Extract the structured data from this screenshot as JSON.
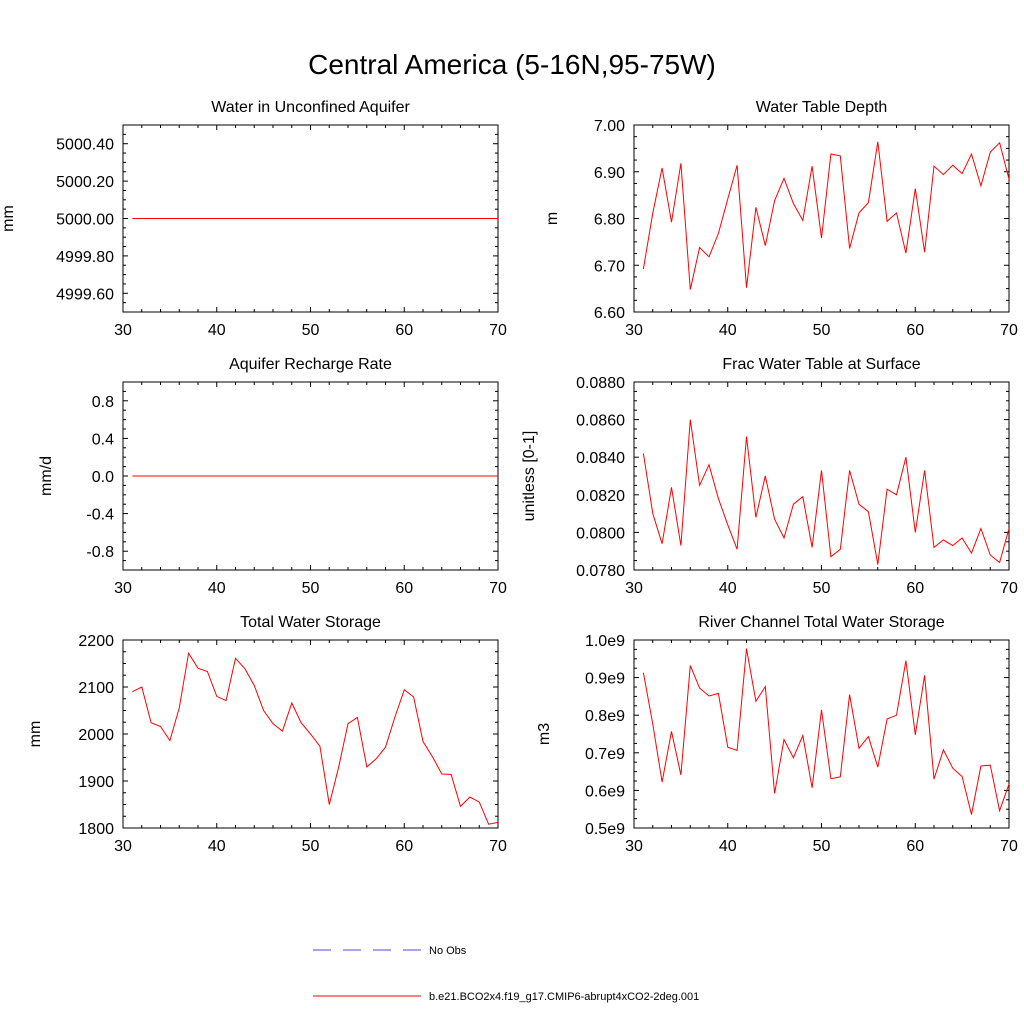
{
  "figure": {
    "title": "Central America (5-16N,95-75W)",
    "legend": [
      {
        "label": "No Obs",
        "color": "#4b4bcf",
        "style": "dashed"
      },
      {
        "label": "b.e21.BCO2x4.f19_g17.CMIP6-abrupt4xCO2-2deg.001",
        "color": "#ff0000",
        "style": "solid"
      }
    ]
  },
  "chart_data": [
    {
      "type": "line",
      "title": "Water in Unconfined Aquifer",
      "xlabel": "",
      "ylabel": "mm",
      "xlim": [
        30,
        70
      ],
      "ylim": [
        4999.5,
        5000.5
      ],
      "xticks": [
        30,
        40,
        50,
        60,
        70
      ],
      "xtick_labels": [
        "30",
        "40",
        "50",
        "60",
        "70"
      ],
      "yticks": [
        4999.6,
        4999.8,
        5000.0,
        5000.2,
        5000.4
      ],
      "ytick_labels": [
        "4999.60",
        "4999.80",
        "5000.00",
        "5000.20",
        "5000.40"
      ],
      "grid": false,
      "series": [
        {
          "name": "b.e21.BCO2x4.f19_g17.CMIP6-abrupt4xCO2-2deg.001",
          "color": "#ff0000",
          "x": [
            31,
            70
          ],
          "values": [
            5000.0,
            5000.0
          ]
        }
      ]
    },
    {
      "type": "line",
      "title": "Water Table Depth",
      "xlabel": "",
      "ylabel": "m",
      "xlim": [
        30,
        70
      ],
      "ylim": [
        6.6,
        7.0
      ],
      "xticks": [
        30,
        40,
        50,
        60,
        70
      ],
      "xtick_labels": [
        "30",
        "40",
        "50",
        "60",
        "70"
      ],
      "yticks": [
        6.6,
        6.7,
        6.8,
        6.9,
        7.0
      ],
      "ytick_labels": [
        "6.60",
        "6.70",
        "6.80",
        "6.90",
        "7.00"
      ],
      "grid": false,
      "series": [
        {
          "name": "b.e21.BCO2x4.f19_g17.CMIP6-abrupt4xCO2-2deg.001",
          "color": "#ff0000",
          "x": [
            31,
            32,
            33,
            34,
            35,
            36,
            37,
            38,
            39,
            40,
            41,
            42,
            43,
            44,
            45,
            46,
            47,
            48,
            49,
            50,
            51,
            52,
            53,
            54,
            55,
            56,
            57,
            58,
            59,
            60,
            61,
            62,
            63,
            64,
            65,
            66,
            67,
            68,
            69,
            70
          ],
          "values": [
            6.692,
            6.812,
            6.908,
            6.792,
            6.918,
            6.648,
            6.738,
            6.718,
            6.768,
            6.842,
            6.914,
            6.652,
            6.824,
            6.742,
            6.838,
            6.886,
            6.832,
            6.796,
            6.912,
            6.758,
            6.938,
            6.934,
            6.736,
            6.812,
            6.834,
            6.964,
            6.794,
            6.812,
            6.726,
            6.864,
            6.728,
            6.912,
            6.894,
            6.914,
            6.896,
            6.938,
            6.87,
            6.942,
            6.962,
            6.884
          ]
        }
      ]
    },
    {
      "type": "line",
      "title": "Aquifer Recharge Rate",
      "xlabel": "",
      "ylabel": "mm/d",
      "xlim": [
        30,
        70
      ],
      "ylim": [
        -1.0,
        1.0
      ],
      "xticks": [
        30,
        40,
        50,
        60,
        70
      ],
      "xtick_labels": [
        "30",
        "40",
        "50",
        "60",
        "70"
      ],
      "yticks": [
        -0.8,
        -0.4,
        0.0,
        0.4,
        0.8
      ],
      "ytick_labels": [
        "-0.8",
        "-0.4",
        "0.0",
        "0.4",
        "0.8"
      ],
      "grid": false,
      "series": [
        {
          "name": "b.e21.BCO2x4.f19_g17.CMIP6-abrupt4xCO2-2deg.001",
          "color": "#ff0000",
          "x": [
            31,
            70
          ],
          "values": [
            0.0,
            0.0
          ]
        }
      ]
    },
    {
      "type": "line",
      "title": "Frac Water Table at Surface",
      "xlabel": "",
      "ylabel": "unitless [0-1]",
      "xlim": [
        30,
        70
      ],
      "ylim": [
        0.078,
        0.088
      ],
      "xticks": [
        30,
        40,
        50,
        60,
        70
      ],
      "xtick_labels": [
        "30",
        "40",
        "50",
        "60",
        "70"
      ],
      "yticks": [
        0.078,
        0.08,
        0.082,
        0.084,
        0.086,
        0.088
      ],
      "ytick_labels": [
        "0.0780",
        "0.0800",
        "0.0820",
        "0.0840",
        "0.0860",
        "0.0880"
      ],
      "grid": false,
      "series": [
        {
          "name": "b.e21.BCO2x4.f19_g17.CMIP6-abrupt4xCO2-2deg.001",
          "color": "#ff0000",
          "x": [
            31,
            32,
            33,
            34,
            35,
            36,
            37,
            38,
            39,
            40,
            41,
            42,
            43,
            44,
            45,
            46,
            47,
            48,
            49,
            50,
            51,
            52,
            53,
            54,
            55,
            56,
            57,
            58,
            59,
            60,
            61,
            62,
            63,
            64,
            65,
            66,
            67,
            68,
            69,
            70
          ],
          "values": [
            0.0842,
            0.081,
            0.0794,
            0.0824,
            0.0793,
            0.086,
            0.0825,
            0.0836,
            0.0818,
            0.0804,
            0.0791,
            0.0851,
            0.0808,
            0.083,
            0.0807,
            0.0797,
            0.0815,
            0.0819,
            0.0792,
            0.0833,
            0.0787,
            0.0791,
            0.0833,
            0.0815,
            0.0811,
            0.0783,
            0.0823,
            0.082,
            0.084,
            0.08,
            0.0833,
            0.0792,
            0.0796,
            0.0793,
            0.0797,
            0.0789,
            0.0802,
            0.0788,
            0.0784,
            0.0802
          ]
        }
      ]
    },
    {
      "type": "line",
      "title": "Total Water Storage",
      "xlabel": "",
      "ylabel": "mm",
      "xlim": [
        30,
        70
      ],
      "ylim": [
        1800,
        2200
      ],
      "xticks": [
        30,
        40,
        50,
        60,
        70
      ],
      "xtick_labels": [
        "30",
        "40",
        "50",
        "60",
        "70"
      ],
      "yticks": [
        1800,
        1900,
        2000,
        2100,
        2200
      ],
      "ytick_labels": [
        "1800",
        "1900",
        "2000",
        "2100",
        "2200"
      ],
      "grid": false,
      "series": [
        {
          "name": "b.e21.BCO2x4.f19_g17.CMIP6-abrupt4xCO2-2deg.001",
          "color": "#ff0000",
          "x": [
            31,
            32,
            33,
            34,
            35,
            36,
            37,
            38,
            39,
            40,
            41,
            42,
            43,
            44,
            45,
            46,
            47,
            48,
            49,
            50,
            51,
            52,
            53,
            54,
            55,
            56,
            57,
            58,
            59,
            60,
            61,
            62,
            63,
            64,
            65,
            66,
            67,
            68,
            69,
            70
          ],
          "values": [
            2090,
            2100,
            2024,
            2016,
            1986,
            2056,
            2172,
            2140,
            2133,
            2080,
            2071,
            2161,
            2139,
            2103,
            2050,
            2022,
            2006,
            2066,
            2024,
            2000,
            1974,
            1850,
            1929,
            2022,
            2035,
            1930,
            1947,
            1972,
            2036,
            2094,
            2079,
            1984,
            1952,
            1915,
            1914,
            1846,
            1866,
            1855,
            1808,
            1812
          ]
        }
      ]
    },
    {
      "type": "line",
      "title": "River Channel Total Water Storage",
      "xlabel": "",
      "ylabel": "m3",
      "xlim": [
        30,
        70
      ],
      "ylim": [
        0.5,
        1.0
      ],
      "xticks": [
        30,
        40,
        50,
        60,
        70
      ],
      "xtick_labels": [
        "30",
        "40",
        "50",
        "60",
        "70"
      ],
      "yticks": [
        0.5,
        0.6,
        0.7,
        0.8,
        0.9,
        1.0
      ],
      "ytick_labels": [
        "0.5e9",
        "0.6e9",
        "0.7e9",
        "0.8e9",
        "0.9e9",
        "1.0e9"
      ],
      "y_units_note": "values in units of 1e9 m3",
      "grid": false,
      "series": [
        {
          "name": "b.e21.BCO2x4.f19_g17.CMIP6-abrupt4xCO2-2deg.001",
          "color": "#ff0000",
          "x": [
            31,
            32,
            33,
            34,
            35,
            36,
            37,
            38,
            39,
            40,
            41,
            42,
            43,
            44,
            45,
            46,
            47,
            48,
            49,
            50,
            51,
            52,
            53,
            54,
            55,
            56,
            57,
            58,
            59,
            60,
            61,
            62,
            63,
            64,
            65,
            66,
            67,
            68,
            69,
            70
          ],
          "values": [
            0.913,
            0.776,
            0.622,
            0.757,
            0.641,
            0.932,
            0.872,
            0.851,
            0.858,
            0.715,
            0.706,
            0.977,
            0.837,
            0.876,
            0.592,
            0.735,
            0.687,
            0.746,
            0.607,
            0.814,
            0.631,
            0.636,
            0.855,
            0.712,
            0.743,
            0.662,
            0.79,
            0.8,
            0.945,
            0.748,
            0.906,
            0.63,
            0.708,
            0.659,
            0.637,
            0.536,
            0.665,
            0.667,
            0.546,
            0.617
          ]
        }
      ]
    }
  ]
}
